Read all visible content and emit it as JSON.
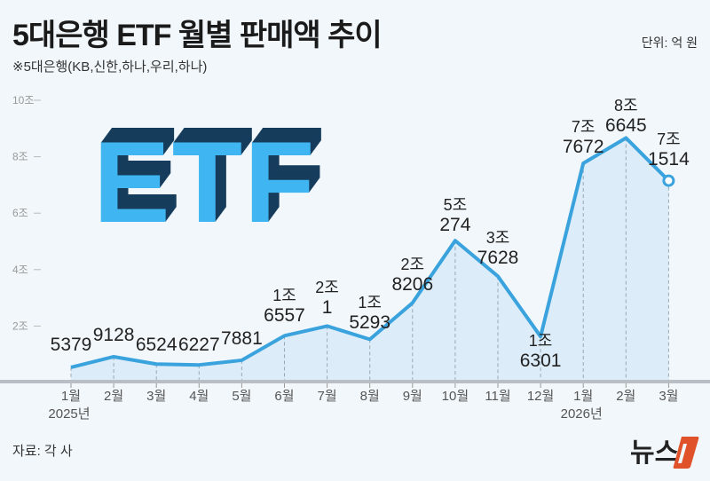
{
  "title": "5대은행 ETF 월별 판매액 추이",
  "subtitle": "※5대은행(KB,신한,하나,우리,하나)",
  "unit": "단위: 억 원",
  "source": "자료: 각 사",
  "logo_text": "뉴스1",
  "graphic_text": "ETF",
  "colors": {
    "line": "#3aa3dd",
    "area": "#dcedf9",
    "etf_face": "#3fb6f2",
    "etf_side": "#173c5c",
    "logo_accent": "#e0522a",
    "background": "#f1f7fb"
  },
  "chart_data": {
    "type": "area",
    "categories": [
      "1월",
      "2월",
      "3월",
      "4월",
      "5월",
      "6월",
      "7월",
      "8월",
      "9월",
      "10월",
      "11월",
      "12월",
      "1월",
      "2월",
      "3월"
    ],
    "year_labels": [
      {
        "index": 0,
        "label": "2025년"
      },
      {
        "index": 12,
        "label": "2026년"
      }
    ],
    "values": [
      5379,
      9128,
      6524,
      6227,
      7881,
      16557,
      20001,
      15293,
      28206,
      50274,
      37628,
      16301,
      77672,
      86645,
      71514
    ],
    "data_labels": [
      [
        "5379"
      ],
      [
        "9128"
      ],
      [
        "6524"
      ],
      [
        "6227"
      ],
      [
        "7881"
      ],
      [
        "1조",
        "6557"
      ],
      [
        "2조",
        "1"
      ],
      [
        "1조",
        "5293"
      ],
      [
        "2조",
        "8206"
      ],
      [
        "5조",
        "274"
      ],
      [
        "3조",
        "7628"
      ],
      [
        "1조",
        "6301"
      ],
      [
        "7조",
        "7672"
      ],
      [
        "8조",
        "6645"
      ],
      [
        "7조",
        "1514"
      ]
    ],
    "yticks": [
      {
        "value": 20000,
        "label": "2조"
      },
      {
        "value": 40000,
        "label": "4조"
      },
      {
        "value": 60000,
        "label": "6조"
      },
      {
        "value": 80000,
        "label": "8조"
      },
      {
        "value": 100000,
        "label": "10조"
      }
    ],
    "ylim": [
      0,
      100000
    ],
    "ylabel": "",
    "xlabel": "",
    "grid": "dashed vertical drop lines"
  }
}
